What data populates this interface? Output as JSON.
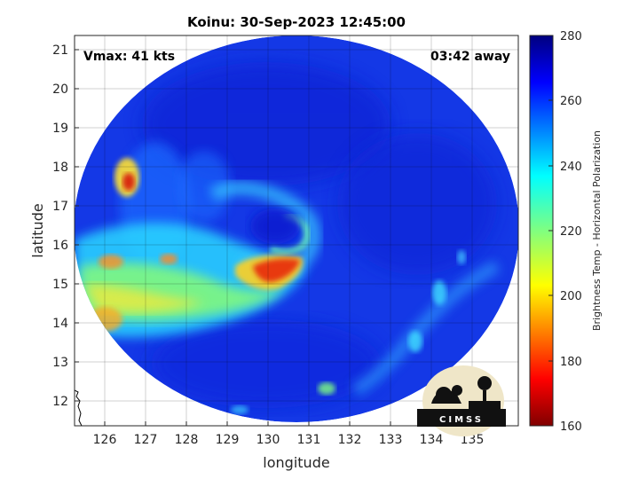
{
  "title": "Koinu: 30-Sep-2023 12:45:00",
  "vmax_text": "Vmax: 41 kts",
  "away_text": "03:42 away",
  "axes": {
    "xlabel": "longitude",
    "ylabel": "latitude",
    "xlim": [
      125.4,
      135.8
    ],
    "ylim": [
      11.35,
      21.35
    ],
    "xticks": [
      "126",
      "127",
      "128",
      "129",
      "130",
      "131",
      "132",
      "133",
      "134",
      "135"
    ],
    "yticks": [
      "12",
      "13",
      "14",
      "15",
      "16",
      "17",
      "18",
      "19",
      "20",
      "21"
    ],
    "grid": true
  },
  "colorbar": {
    "label": "Brightness Temp - Horizontal Polarization",
    "ticks": [
      "160",
      "180",
      "200",
      "220",
      "240",
      "260",
      "280"
    ],
    "range": [
      160,
      280
    ],
    "colormap": "jet"
  },
  "logo": {
    "text": "CIMSS"
  },
  "colors": {
    "background_ocean": "#1438e6",
    "deep_blue": "#0a1fd0",
    "cold_red": "#cc1a10"
  }
}
